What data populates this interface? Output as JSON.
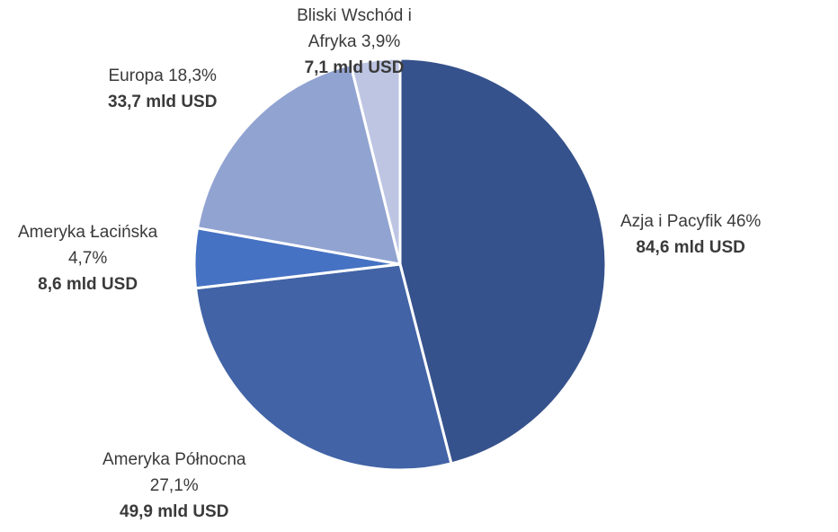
{
  "chart_data": {
    "type": "pie",
    "title": "",
    "start_angle_deg": 0,
    "direction": "clockwise",
    "slices": [
      {
        "label": "Azja i Pacyfik",
        "percent_label": "46%",
        "value": 84.6,
        "value_label": "84,6 mld USD",
        "color": "#36528c"
      },
      {
        "label": "Ameryka Północna",
        "percent_label": "27,1%",
        "value": 49.9,
        "value_label": "49,9 mld USD",
        "color": "#4263a6"
      },
      {
        "label": "Ameryka Łacińska",
        "percent_label": "4,7%",
        "value": 8.6,
        "value_label": "8,6 mld USD",
        "color": "#4672c4"
      },
      {
        "label": "Europa",
        "percent_label": "18,3%",
        "value": 33.7,
        "value_label": "33,7 mld USD",
        "color": "#91a3d1"
      },
      {
        "label": "Bliski Wschód i Afryka",
        "percent_label": "3,9%",
        "value": 7.1,
        "value_label": "7,1 mld USD",
        "color": "#bdc5e3"
      }
    ],
    "legend": "none",
    "data_labels": "outside"
  }
}
